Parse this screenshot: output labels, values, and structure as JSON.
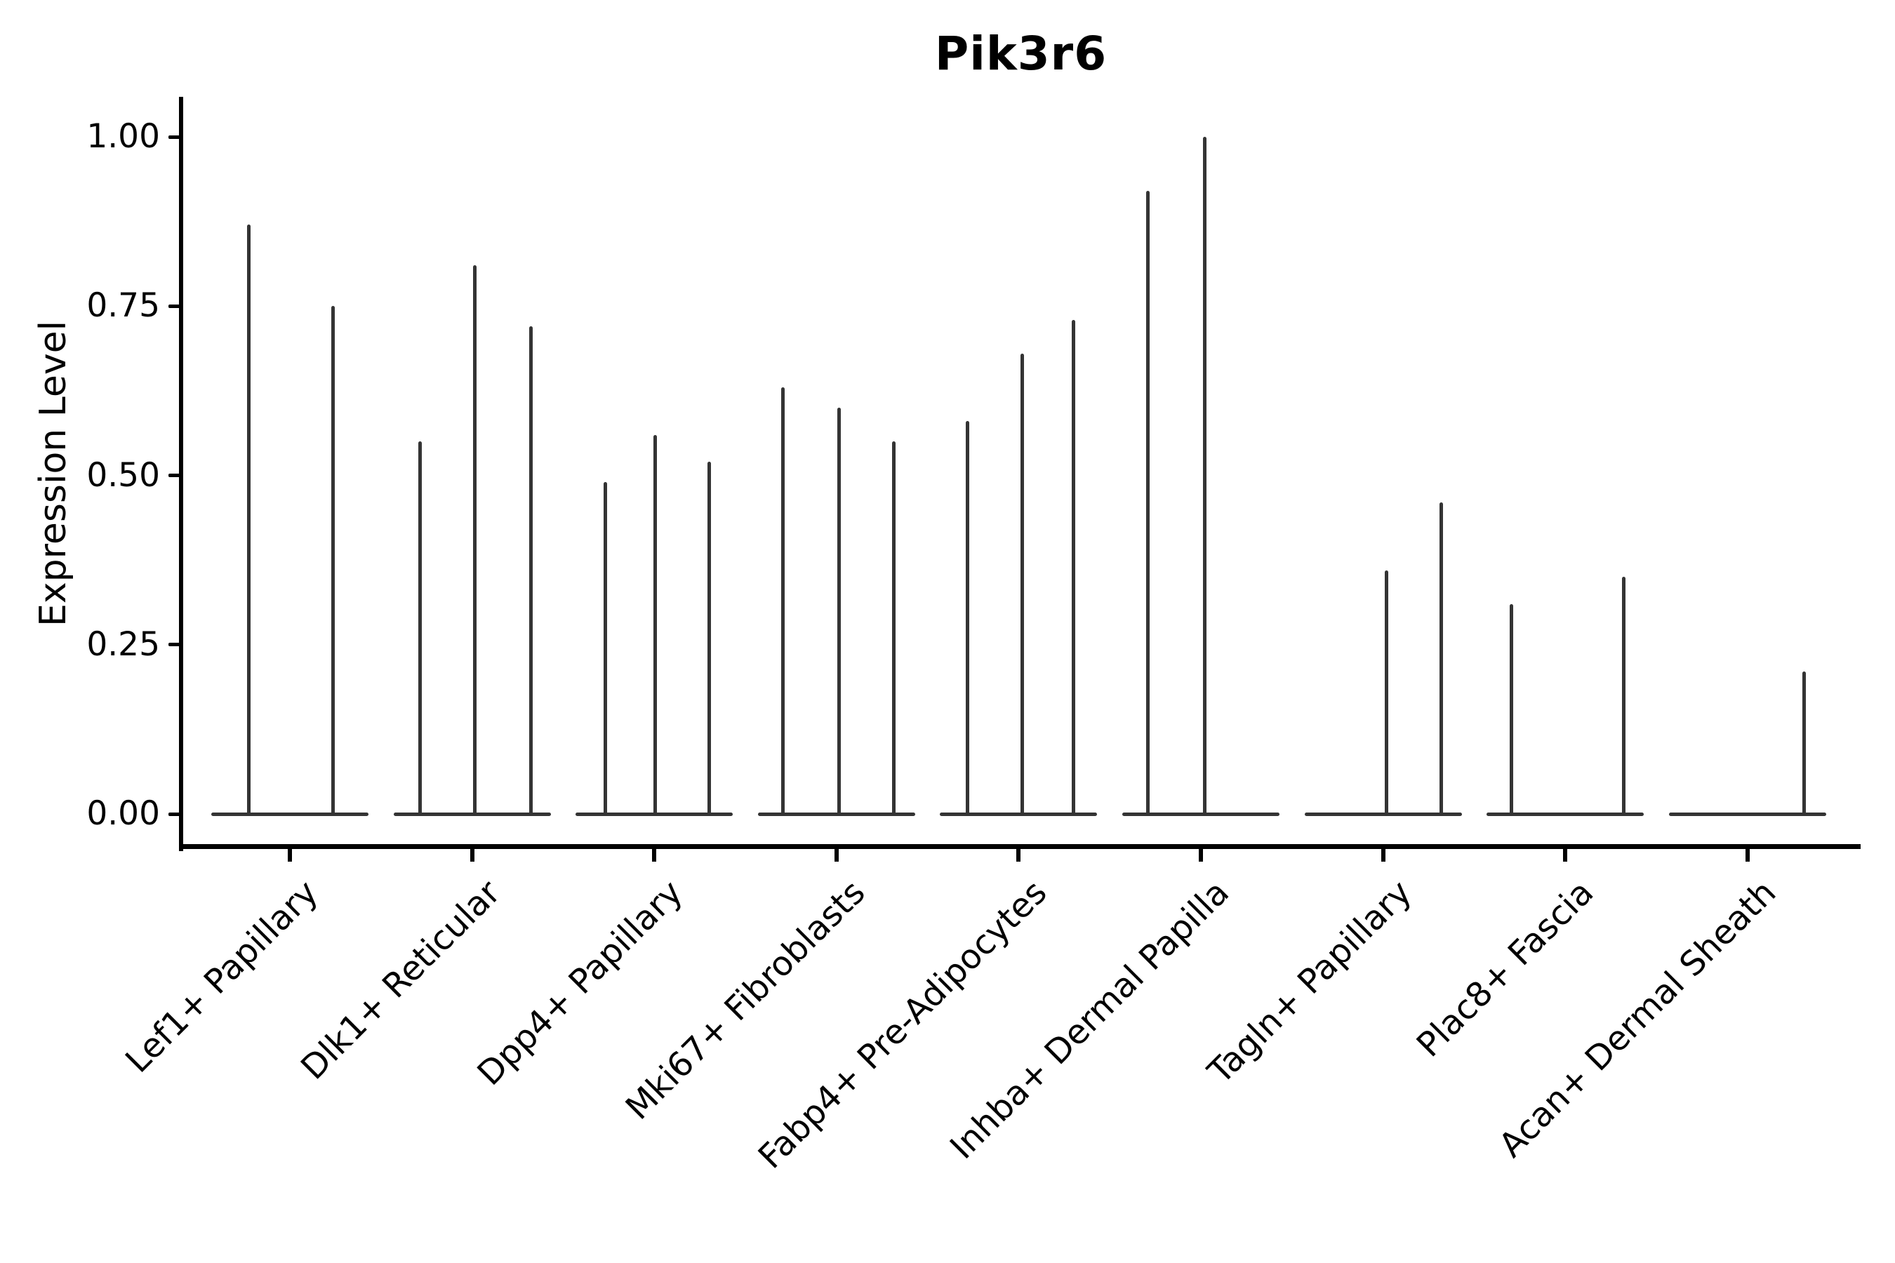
{
  "figure": {
    "background": "#ffffff",
    "violin_color": "#343434",
    "axis_color": "#000000"
  },
  "chart_data": {
    "type": "violin",
    "title": "Pik3r6",
    "xlabel": "",
    "ylabel": "Expression Level",
    "ylim": [
      0,
      1.05
    ],
    "grid": false,
    "legend": null,
    "yticks": [
      {
        "value": 0.0,
        "label": "0.00"
      },
      {
        "value": 0.25,
        "label": "0.25"
      },
      {
        "value": 0.5,
        "label": "0.50"
      },
      {
        "value": 0.75,
        "label": "0.75"
      },
      {
        "value": 1.0,
        "label": "1.00"
      }
    ],
    "categories": [
      "Lef1+ Papillary",
      "Dlk1+ Reticular",
      "Dpp4+ Papillary",
      "Mki67+ Fibroblasts",
      "Fabp4+ Pre-Adipocytes",
      "Inhba+ Dermal Papilla",
      "Tagln+ Papillary",
      "Plac8+ Fascia",
      "Acan+ Dermal Sheath"
    ],
    "series": [
      {
        "category": "Lef1+ Papillary",
        "violins": [
          {
            "offset": -0.225,
            "max": 0.87
          },
          {
            "offset": 0.235,
            "max": 0.75
          }
        ]
      },
      {
        "category": "Dlk1+ Reticular",
        "violins": [
          {
            "offset": -0.285,
            "max": 0.55
          },
          {
            "offset": 0.015,
            "max": 0.81
          },
          {
            "offset": 0.325,
            "max": 0.72
          }
        ]
      },
      {
        "category": "Dpp4+ Papillary",
        "violins": [
          {
            "offset": -0.27,
            "max": 0.49
          },
          {
            "offset": 0.005,
            "max": 0.56
          },
          {
            "offset": 0.3,
            "max": 0.52
          }
        ]
      },
      {
        "category": "Mki67+ Fibroblasts",
        "violins": [
          {
            "offset": -0.295,
            "max": 0.63
          },
          {
            "offset": 0.015,
            "max": 0.6
          },
          {
            "offset": 0.315,
            "max": 0.55
          }
        ]
      },
      {
        "category": "Fabp4+ Pre-Adipocytes",
        "violins": [
          {
            "offset": -0.28,
            "max": 0.58
          },
          {
            "offset": 0.02,
            "max": 0.68
          },
          {
            "offset": 0.3,
            "max": 0.73
          }
        ]
      },
      {
        "category": "Inhba+ Dermal Papilla",
        "violins": [
          {
            "offset": -0.29,
            "max": 0.92
          },
          {
            "offset": 0.02,
            "max": 1.0
          }
        ]
      },
      {
        "category": "Tagln+ Papillary",
        "violins": [
          {
            "offset": 0.02,
            "max": 0.36
          },
          {
            "offset": 0.32,
            "max": 0.46
          }
        ]
      },
      {
        "category": "Plac8+ Fascia",
        "violins": [
          {
            "offset": -0.295,
            "max": 0.31
          },
          {
            "offset": 0.32,
            "max": 0.35
          }
        ]
      },
      {
        "category": "Acan+ Dermal Sheath",
        "violins": [
          {
            "offset": 0.31,
            "max": 0.21
          }
        ]
      }
    ]
  }
}
